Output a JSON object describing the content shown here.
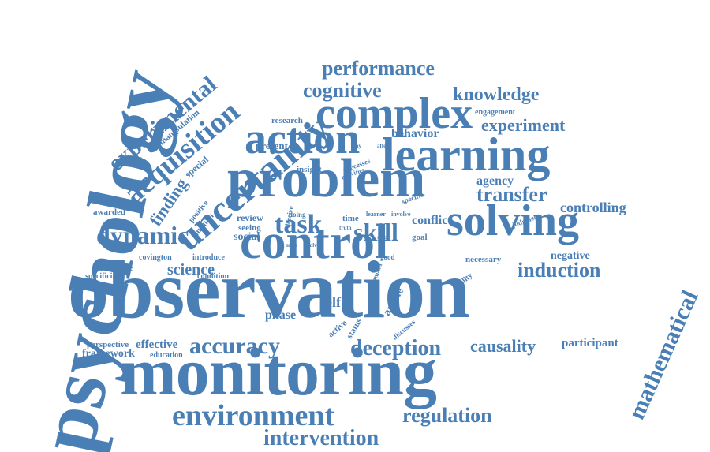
{
  "color": "#4a7fb5",
  "words": {
    "observation": "observation",
    "monitoring": "monitoring",
    "problem": "problem",
    "control": "control",
    "solving": "solving",
    "learning": "learning",
    "complex": "complex",
    "action": "action",
    "psychology": "psychology",
    "uncertainty": "uncertainty",
    "acquisition": "acquisition",
    "experimental": "experimental",
    "dynamic": "dynamic",
    "task": "task",
    "skill": "skill",
    "environment": "environment",
    "intervention": "intervention",
    "regulation": "regulation",
    "accuracy": "accuracy",
    "deception": "deception",
    "causality": "causality",
    "induction": "induction",
    "mathematical": "mathematical",
    "performance": "performance",
    "cognitive": "cognitive",
    "knowledge": "knowledge",
    "experiment": "experiment",
    "behavior": "behavior",
    "transfer": "transfer",
    "agency": "agency",
    "controlling": "controlling",
    "conflict": "conflict",
    "science": "science",
    "self": "self",
    "phase": "phase",
    "finding": "finding",
    "effective": "effective",
    "framework": "framework",
    "participant": "participant",
    "negative": "negative",
    "interfere": "interfere",
    "social": "social",
    "awarded": "awarded",
    "specificity": "specificity",
    "covington": "covington",
    "introduce": "introduce",
    "condition": "condition",
    "education": "education",
    "perspective": "perspective",
    "review": "review",
    "seeing": "seeing",
    "present": "present",
    "research": "research",
    "insight": "insight",
    "special": "special",
    "manipulation": "manipulation",
    "positive": "positive",
    "human": "human",
    "engagement": "engagement",
    "necessary": "necessary",
    "goal": "goal",
    "judgment": "judgment",
    "specific": "specific",
    "processes": "processes",
    "activities": "activities",
    "deceive": "deceive",
    "doing": "doing",
    "time": "time",
    "truth": "truth",
    "learner": "learner",
    "involve": "involve",
    "good": "good",
    "domain": "domain",
    "article": "article",
    "active": "active",
    "status": "status",
    "discusses": "discusses",
    "ability": "ability",
    "study": "study",
    "main": "main",
    "solve": "solve",
    "way": "way",
    "affect": "affect"
  }
}
